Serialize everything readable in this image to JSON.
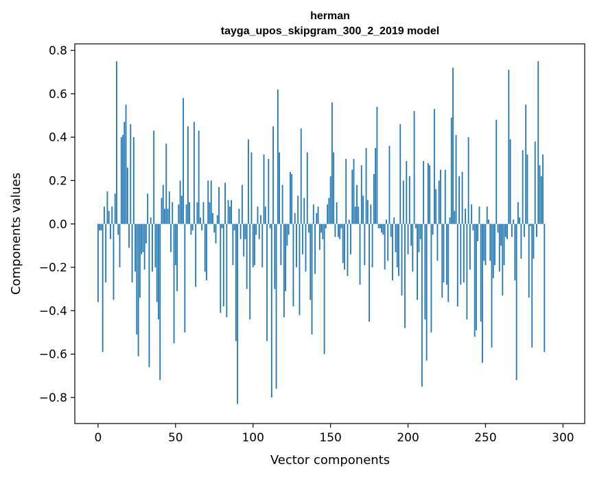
{
  "chart_data": {
    "type": "bar",
    "title": "herman",
    "subtitle": "tayga_upos_skipgram_300_2_2019 model",
    "xlabel": "Vector components",
    "ylabel": "Components values",
    "xlim": [
      -15,
      314
    ],
    "ylim": [
      -0.92,
      0.83
    ],
    "xticks": [
      0,
      50,
      100,
      150,
      200,
      250,
      300
    ],
    "yticks": [
      -0.8,
      -0.6,
      -0.4,
      -0.2,
      0.0,
      0.2,
      0.4,
      0.6,
      0.8
    ],
    "xtick_labels": [
      "0",
      "50",
      "100",
      "150",
      "200",
      "250",
      "300"
    ],
    "ytick_labels": [
      "−0.8",
      "−0.6",
      "−0.4",
      "−0.2",
      "0.0",
      "0.2",
      "0.4",
      "0.6",
      "0.8"
    ],
    "bar_color": "#1f77b4",
    "grid": false,
    "legend": "none",
    "values": [
      -0.36,
      -0.03,
      -0.03,
      -0.59,
      0.08,
      -0.27,
      0.15,
      0.06,
      -0.07,
      0.08,
      -0.35,
      0.14,
      0.75,
      -0.05,
      -0.2,
      0.4,
      0.41,
      0.47,
      0.55,
      0.26,
      -0.11,
      0.46,
      -0.27,
      0.4,
      -0.22,
      -0.51,
      -0.61,
      -0.34,
      -0.14,
      -0.13,
      -0.21,
      -0.09,
      0.14,
      -0.66,
      0.03,
      -0.22,
      0.43,
      -0.2,
      -0.36,
      -0.44,
      -0.72,
      0.12,
      0.18,
      0.07,
      0.37,
      0.07,
      0.15,
      -0.13,
      0.1,
      -0.55,
      -0.19,
      -0.31,
      0.09,
      0.2,
      0.13,
      0.58,
      -0.5,
      0.09,
      0.45,
      0.1,
      -0.05,
      -0.03,
      0.47,
      -0.29,
      0.1,
      0.43,
      0.03,
      -0.03,
      0.1,
      -0.22,
      -0.26,
      0.2,
      0.1,
      0.2,
      0.05,
      -0.04,
      -0.09,
      0.04,
      0.17,
      -0.41,
      -0.02,
      -0.38,
      0.19,
      -0.43,
      0.11,
      0.08,
      0.11,
      -0.19,
      -0.03,
      -0.54,
      -0.83,
      0.07,
      -0.07,
      0.18,
      -0.15,
      -0.07,
      -0.3,
      0.39,
      -0.44,
      0.33,
      -0.2,
      -0.19,
      -0.05,
      0.08,
      -0.07,
      0.04,
      -0.2,
      0.32,
      0.08,
      -0.54,
      0.3,
      -0.02,
      -0.8,
      0.45,
      -0.3,
      -0.76,
      0.62,
      0.33,
      -0.19,
      0.18,
      -0.43,
      -0.31,
      -0.1,
      -0.05,
      0.24,
      0.23,
      -0.38,
      0.05,
      -0.2,
      0.13,
      -0.42,
      0.44,
      -0.14,
      0.12,
      -0.22,
      0.33,
      -0.04,
      -0.35,
      -0.51,
      0.09,
      -0.23,
      0.05,
      0.08,
      -0.12,
      -0.04,
      -0.07,
      -0.6,
      -0.02,
      0.09,
      0.12,
      0.22,
      0.56,
      0.33,
      -0.06,
      0.1,
      -0.06,
      -0.07,
      -0.02,
      -0.18,
      -0.21,
      0.3,
      -0.24,
      0.02,
      -0.14,
      0.25,
      0.3,
      0.08,
      0.18,
      0.08,
      -0.28,
      0.27,
      0.13,
      -0.19,
      0.35,
      0.11,
      -0.45,
      0.09,
      -0.2,
      0.23,
      0.35,
      0.54,
      -0.02,
      -0.02,
      -0.04,
      -0.05,
      -0.21,
      0.02,
      -0.17,
      0.36,
      -0.06,
      -0.26,
      0.03,
      -0.13,
      -0.2,
      -0.24,
      0.46,
      -0.33,
      0.2,
      -0.48,
      0.29,
      -0.14,
      0.22,
      -0.1,
      -0.22,
      0.52,
      -0.02,
      -0.35,
      -0.13,
      -0.07,
      -0.75,
      0.29,
      -0.44,
      -0.63,
      0.28,
      0.27,
      -0.5,
      -0.05,
      0.53,
      0.16,
      -0.17,
      0.2,
      0.25,
      -0.34,
      -0.27,
      0.25,
      -0.28,
      -0.36,
      0.03,
      0.49,
      0.72,
      0.06,
      0.41,
      -0.38,
      0.22,
      -0.28,
      0.24,
      -0.27,
      0.07,
      -0.44,
      0.4,
      -0.21,
      0.09,
      -0.03,
      -0.52,
      -0.49,
      -0.08,
      0.08,
      -0.45,
      -0.64,
      -0.17,
      -0.19,
      0.08,
      0.02,
      -0.17,
      -0.57,
      -0.25,
      -0.19,
      0.48,
      -0.04,
      -0.22,
      -0.1,
      -0.33,
      -0.19,
      -0.06,
      -0.07,
      0.71,
      0.39,
      -0.06,
      0.02,
      -0.26,
      -0.72,
      0.1,
      0.03,
      -0.16,
      0.34,
      -0.06,
      0.55,
      0.32,
      -0.34,
      -0.01,
      -0.57,
      -0.16,
      0.38,
      -0.06,
      0.75,
      0.27,
      0.22,
      0.32,
      -0.59
    ]
  }
}
